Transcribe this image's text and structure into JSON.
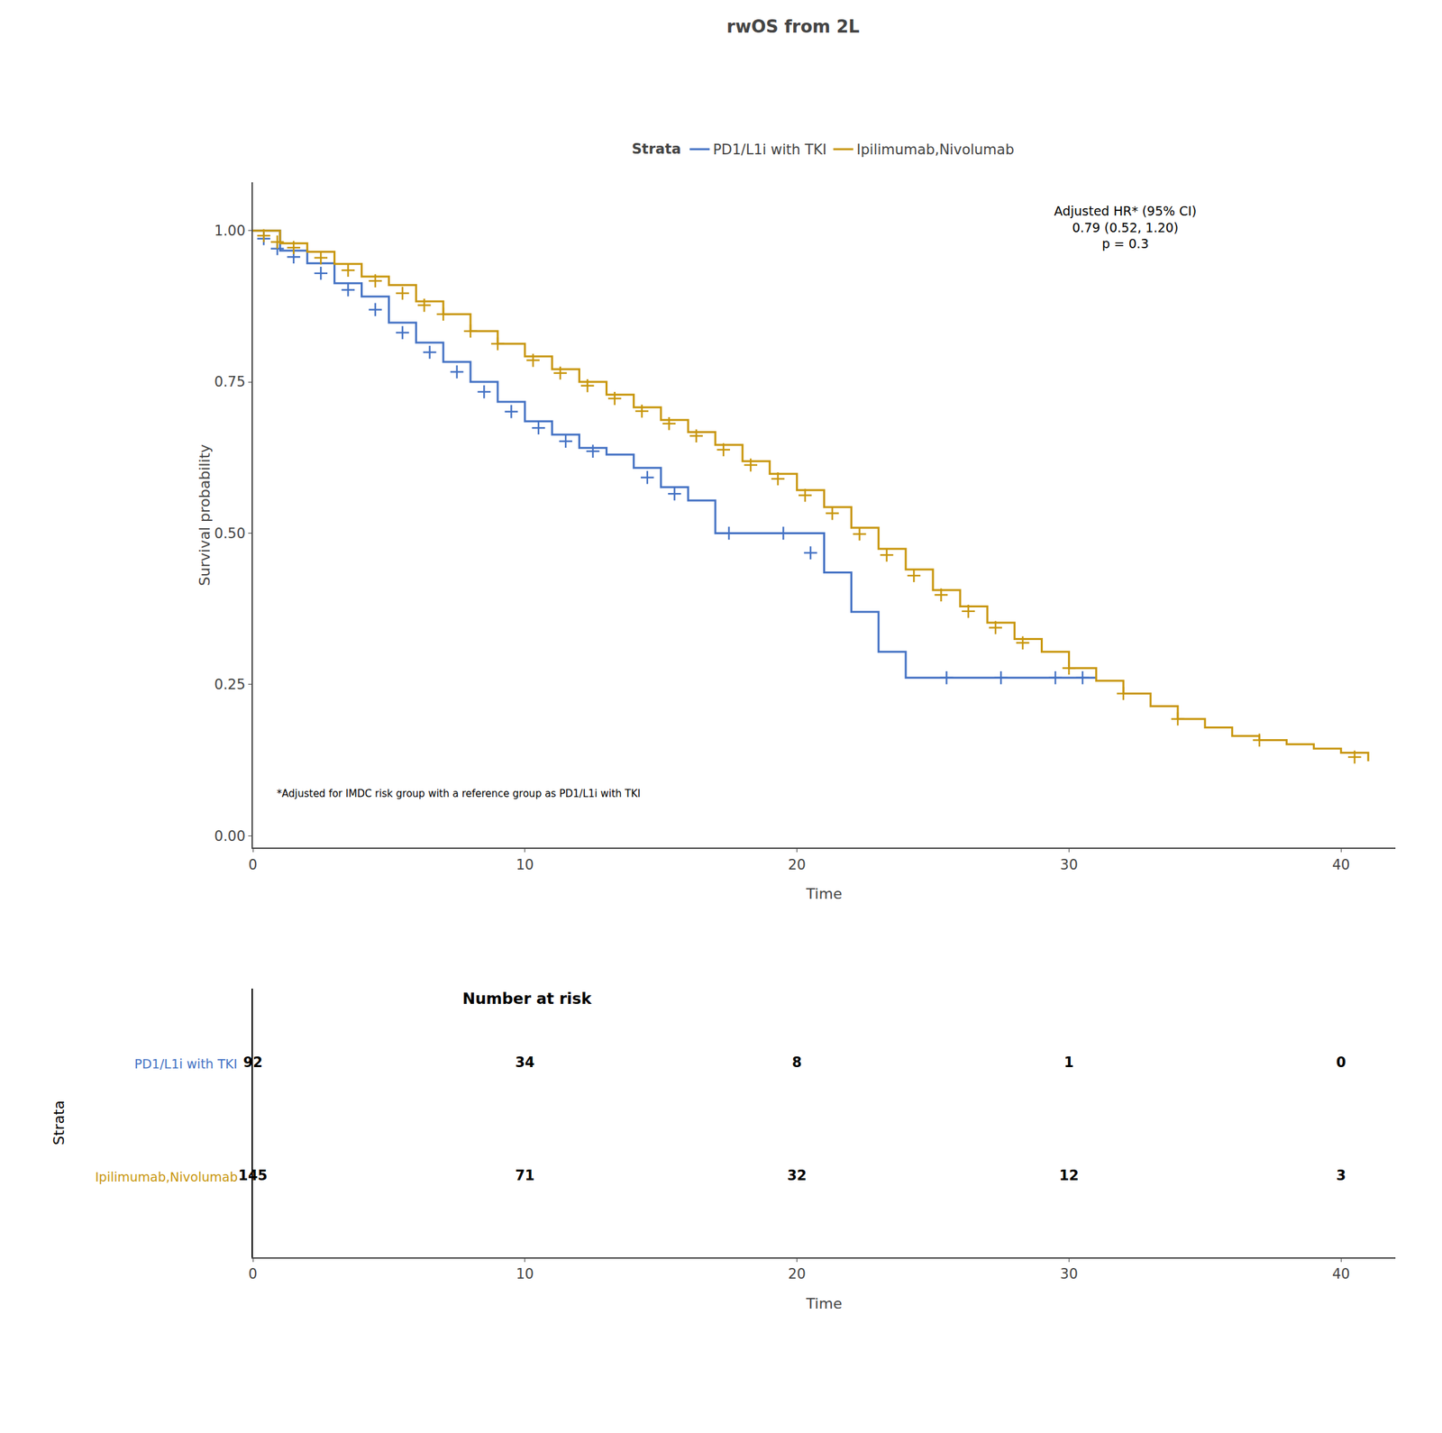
{
  "chart_data": {
    "type": "step",
    "title": "rwOS from 2L",
    "xlabel": "Time",
    "ylabel": "Survival probability",
    "xlim": [
      0,
      42
    ],
    "ylim": [
      -0.02,
      1.08
    ],
    "xticks": [
      0,
      10,
      20,
      30,
      40
    ],
    "yticks": [
      {
        "value": 0.0,
        "label": "0.00"
      },
      0.25,
      {
        "value": 0.5,
        "label": "0.50"
      },
      0.75,
      {
        "value": 1.0,
        "label": "1.00"
      }
    ],
    "grid": false,
    "legend": "top",
    "legend_title": "Strata",
    "annotations": [
      "Adjusted HR* (95% CI)\n0.79 (0.52, 1.20)\np = 0.3",
      "*Adjusted for IMDC risk group with a reference group as PD1/L1i with TKI"
    ],
    "series": [
      {
        "name": "PD1/L1i with TKI",
        "color": "#4472C4",
        "marker": "cross",
        "x": [
          0,
          1,
          2,
          3,
          4,
          5,
          6,
          7,
          8,
          9,
          10,
          11,
          12,
          13,
          14,
          15,
          16,
          17,
          18,
          19,
          20,
          21,
          22,
          23,
          24,
          25,
          26,
          27,
          28,
          29,
          30,
          31
        ],
        "values": [
          1.0,
          0.967,
          0.946,
          0.913,
          0.891,
          0.848,
          0.815,
          0.783,
          0.75,
          0.717,
          0.685,
          0.663,
          0.641,
          0.63,
          0.608,
          0.576,
          0.554,
          0.5,
          0.5,
          0.5,
          0.5,
          0.435,
          0.37,
          0.304,
          0.261,
          0.261,
          0.261,
          0.261,
          0.261,
          0.261,
          0.261,
          0.261
        ],
        "censor_x": [
          0.4,
          0.9,
          1.5,
          2.5,
          3.5,
          4.5,
          5.5,
          6.5,
          7.5,
          8.5,
          9.5,
          10.5,
          11.5,
          12.5,
          14.5,
          15.5,
          17.5,
          19.5,
          20.5,
          25.5,
          27.5,
          29.5,
          30.5
        ],
        "censor_values": [
          0.9868,
          0.9703,
          0.9565,
          0.9295,
          0.902,
          0.8695,
          0.8315,
          0.799,
          0.7665,
          0.7335,
          0.701,
          0.674,
          0.652,
          0.6355,
          0.592,
          0.565,
          0.5,
          0.5,
          0.4675,
          0.261,
          0.261,
          0.261,
          0.261
        ]
      },
      {
        "name": "Ipilimumab,Nivolumab",
        "color": "#C8960C",
        "marker": "cross",
        "x": [
          0,
          1,
          2,
          3,
          4,
          5,
          6,
          7,
          8,
          9,
          10,
          11,
          12,
          13,
          14,
          15,
          16,
          17,
          18,
          19,
          20,
          21,
          22,
          23,
          24,
          25,
          26,
          27,
          28,
          29,
          30,
          31,
          32,
          33,
          34,
          35,
          36,
          37,
          38,
          39,
          40,
          41
        ],
        "values": [
          1.0,
          0.979,
          0.965,
          0.945,
          0.924,
          0.91,
          0.883,
          0.862,
          0.834,
          0.813,
          0.792,
          0.771,
          0.75,
          0.729,
          0.708,
          0.687,
          0.667,
          0.646,
          0.619,
          0.598,
          0.571,
          0.543,
          0.509,
          0.474,
          0.44,
          0.406,
          0.379,
          0.352,
          0.325,
          0.304,
          0.277,
          0.256,
          0.235,
          0.214,
          0.193,
          0.179,
          0.165,
          0.158,
          0.151,
          0.144,
          0.137,
          0.123
        ],
        "censor_x": [
          0.4,
          0.9,
          1.5,
          2.5,
          3.5,
          4.5,
          5.5,
          6.3,
          7.0,
          8.0,
          9.0,
          10.3,
          11.3,
          12.3,
          13.3,
          14.3,
          15.3,
          16.3,
          17.3,
          18.3,
          19.3,
          20.3,
          21.3,
          22.3,
          23.3,
          24.3,
          25.3,
          26.3,
          27.3,
          28.3,
          30.0,
          32.0,
          34.0,
          37.0,
          40.5
        ],
        "censor_values": [
          0.9916,
          0.9811,
          0.972,
          0.955,
          0.9345,
          0.917,
          0.8965,
          0.8767,
          0.862,
          0.834,
          0.813,
          0.7857,
          0.7647,
          0.7437,
          0.7227,
          0.7017,
          0.681,
          0.6607,
          0.6379,
          0.6127,
          0.5899,
          0.5626,
          0.5328,
          0.4985,
          0.4638,
          0.4298,
          0.3979,
          0.3709,
          0.3439,
          0.3187,
          0.277,
          0.235,
          0.193,
          0.158,
          0.13
        ]
      }
    ],
    "risk_table": {
      "title": "Number at risk",
      "label": "Strata",
      "xlabel": "Time",
      "x": [
        0,
        10,
        20,
        30,
        40
      ],
      "rows": [
        {
          "name": "PD1/L1i with TKI",
          "color": "#4472C4",
          "values": [
            92,
            34,
            8,
            1,
            0
          ]
        },
        {
          "name": "Ipilimumab,Nivolumab",
          "color": "#C8960C",
          "values": [
            145,
            71,
            32,
            12,
            3
          ]
        }
      ]
    }
  }
}
